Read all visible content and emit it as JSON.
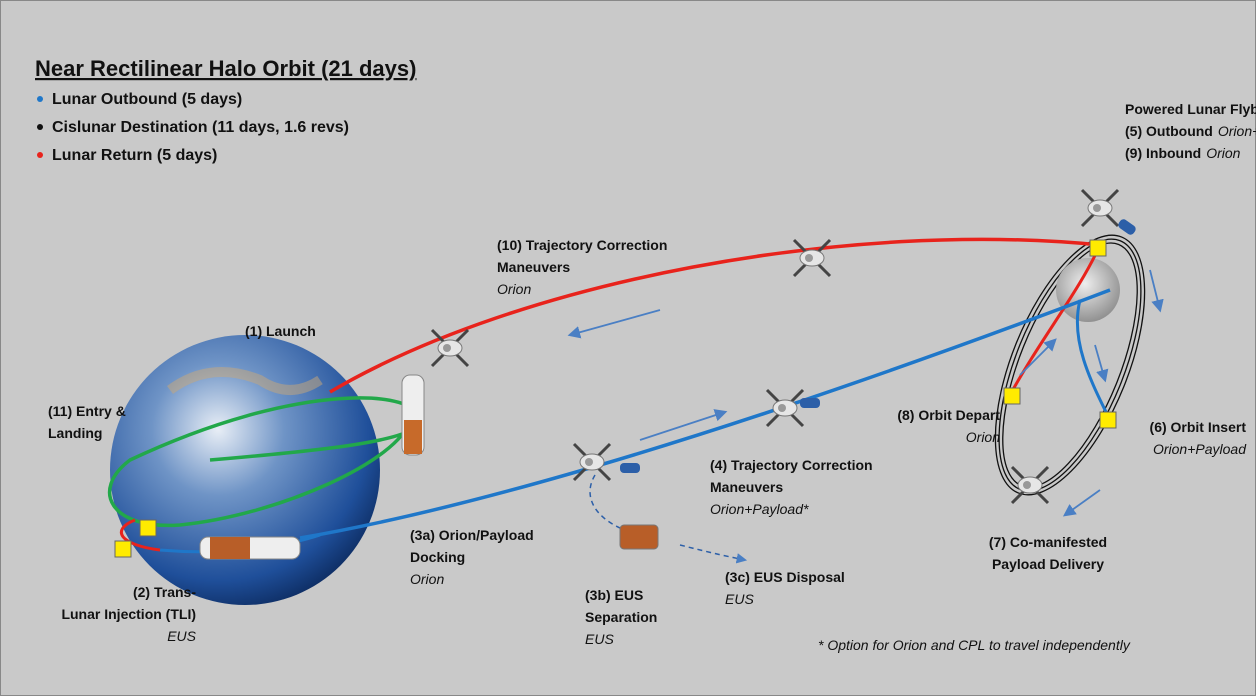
{
  "title": "Near Rectilinear Halo Orbit (21 days)",
  "legend": [
    {
      "text": "Lunar Outbound (5 days)",
      "color": "#1f77c9"
    },
    {
      "text": "Cislunar Destination (11 days, 1.6 revs)",
      "color": "#111111"
    },
    {
      "text": "Lunar Return (5 days)",
      "color": "#e8231c"
    }
  ],
  "flybys": {
    "heading": "Powered Lunar Flybys",
    "items": [
      {
        "label": "(5) Outbound",
        "who": "Orion+Payload"
      },
      {
        "label": "(9) Inbound",
        "who": "Orion"
      }
    ]
  },
  "annotations": [
    {
      "lines": [
        "(10) Trajectory Correction",
        "Maneuvers"
      ],
      "sub": "Orion"
    },
    {
      "lines": [
        "(1) Launch"
      ]
    },
    {
      "lines": [
        "(11) Entry &",
        "Landing"
      ]
    },
    {
      "lines": [
        "(2) Trans-",
        "Lunar Injection (TLI)"
      ],
      "sub": "EUS"
    },
    {
      "lines": [
        "(3a) Orion/Payload",
        "Docking"
      ],
      "sub": "Orion"
    },
    {
      "lines": [
        "(3b) EUS",
        "Separation"
      ],
      "sub": "EUS"
    },
    {
      "lines": [
        "(3c) EUS Disposal"
      ],
      "sub": "EUS"
    },
    {
      "lines": [
        "(4) Trajectory Correction",
        "Maneuvers"
      ],
      "sub": "Orion+Payload*"
    },
    {
      "lines": [
        "(8) Orbit Depart"
      ],
      "sub": "Orion"
    },
    {
      "lines": [
        "(6) Orbit Insert"
      ],
      "sub": "Orion+Payload"
    },
    {
      "lines": [
        "(7) Co-manifested",
        "Payload Delivery"
      ]
    }
  ],
  "footnote": "* Option for Orion and CPL to travel independently"
}
